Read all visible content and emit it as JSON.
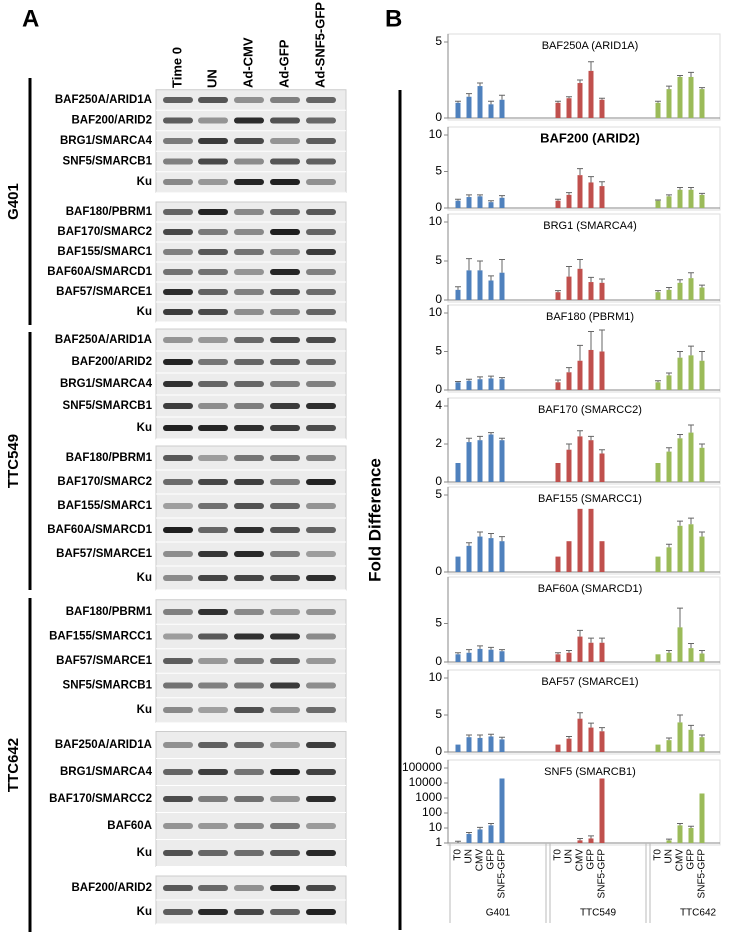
{
  "figure": {
    "panel_a": "A",
    "panel_b": "B",
    "y_label": "Fold Difference",
    "columns": [
      "Time 0",
      "UN",
      "Ad-CMV",
      "Ad-GFP",
      "Ad-SNF5-GFP"
    ],
    "cell_lines": [
      {
        "name": "G401",
        "blocks": [
          [
            "BAF250A/ARID1A",
            "BAF200/ARID2",
            "BRG1/SMARCA4",
            "SNF5/SMARCB1",
            "Ku"
          ],
          [
            "BAF180/PBRM1",
            "BAF170/SMARC2",
            "BAF155/SMARC1",
            "BAF60A/SMARCD1",
            "BAF57/SMARCE1",
            "Ku"
          ]
        ]
      },
      {
        "name": "TTC549",
        "blocks": [
          [
            "BAF250A/ARID1A",
            "BAF200/ARID2",
            "BRG1/SMARCA4",
            "SNF5/SMARCB1",
            "Ku"
          ],
          [
            "BAF180/PBRM1",
            "BAF170/SMARC2",
            "BAF155/SMARC1",
            "BAF60A/SMARCD1",
            "BAF57/SMARCE1",
            "Ku"
          ]
        ]
      },
      {
        "name": "TTC642",
        "blocks": [
          [
            "BAF180/PBRM1",
            "BAF155/SMARCC1",
            "BAF57/SMARCE1",
            "SNF5/SMARCB1",
            "Ku"
          ],
          [
            "BAF250A/ARID1A",
            "BRG1/SMARCA4",
            "BAF170/SMARCC2",
            "BAF60A",
            "Ku"
          ],
          [
            "BAF200/ARID2",
            "Ku"
          ]
        ]
      }
    ]
  },
  "chart_data": [
    {
      "type": "bar",
      "title": "BAF250A (ARID1A)",
      "ylim": [
        0,
        5
      ],
      "yticks": [
        0,
        5
      ],
      "series": [
        {
          "color": "#4f81bd",
          "values": [
            1.0,
            1.4,
            2.1,
            0.9,
            1.2
          ],
          "errors": [
            0.1,
            0.2,
            0.2,
            0.2,
            0.3
          ]
        },
        {
          "color": "#c0504d",
          "values": [
            1.0,
            1.3,
            2.3,
            3.1,
            1.2
          ],
          "errors": [
            0.1,
            0.1,
            0.2,
            0.6,
            0.1
          ]
        },
        {
          "color": "#9bbb59",
          "values": [
            1.0,
            1.9,
            2.7,
            2.7,
            1.9
          ],
          "errors": [
            0.1,
            0.2,
            0.1,
            0.3,
            0.1
          ]
        }
      ]
    },
    {
      "type": "bar",
      "title": "BAF200 (ARID2)",
      "ylim": [
        0,
        10
      ],
      "yticks": [
        0,
        5,
        10
      ],
      "series": [
        {
          "color": "#4f81bd",
          "values": [
            1.0,
            1.5,
            1.6,
            0.8,
            1.4
          ],
          "errors": [
            0.2,
            0.3,
            0.2,
            0.2,
            0.3
          ]
        },
        {
          "color": "#c0504d",
          "values": [
            1.0,
            1.8,
            4.5,
            3.5,
            3.0
          ],
          "errors": [
            0.2,
            0.3,
            0.9,
            0.8,
            0.6
          ]
        },
        {
          "color": "#9bbb59",
          "values": [
            1.0,
            1.6,
            2.5,
            2.5,
            1.8
          ],
          "errors": [
            0.1,
            0.2,
            0.3,
            0.3,
            0.2
          ]
        }
      ]
    },
    {
      "type": "bar",
      "title": "BRG1 (SMARCA4)",
      "ylim": [
        0,
        10
      ],
      "yticks": [
        0,
        5,
        10
      ],
      "series": [
        {
          "color": "#4f81bd",
          "values": [
            1.3,
            3.8,
            3.8,
            2.5,
            3.5
          ],
          "errors": [
            0.4,
            1.5,
            1.2,
            0.6,
            1.7
          ]
        },
        {
          "color": "#c0504d",
          "values": [
            1.0,
            3.0,
            4.0,
            2.3,
            2.2
          ],
          "errors": [
            0.2,
            1.3,
            1.2,
            0.6,
            0.5
          ]
        },
        {
          "color": "#9bbb59",
          "values": [
            1.0,
            1.3,
            2.2,
            2.8,
            1.6
          ],
          "errors": [
            0.2,
            0.3,
            0.4,
            0.7,
            0.3
          ]
        }
      ]
    },
    {
      "type": "bar",
      "title": "BAF180 (PBRM1)",
      "ylim": [
        0,
        10
      ],
      "yticks": [
        0,
        5,
        10
      ],
      "series": [
        {
          "color": "#4f81bd",
          "values": [
            1.0,
            1.2,
            1.4,
            1.5,
            1.4
          ],
          "errors": [
            0.1,
            0.2,
            0.3,
            0.3,
            0.2
          ]
        },
        {
          "color": "#c0504d",
          "values": [
            1.0,
            2.3,
            3.8,
            5.2,
            5.0
          ],
          "errors": [
            0.3,
            0.6,
            2.0,
            2.4,
            2.8
          ]
        },
        {
          "color": "#9bbb59",
          "values": [
            1.0,
            1.9,
            4.2,
            4.5,
            3.8
          ],
          "errors": [
            0.2,
            0.3,
            0.8,
            1.2,
            1.2
          ]
        }
      ]
    },
    {
      "type": "bar",
      "title": "BAF170 (SMARCC2)",
      "ylim": [
        0,
        4
      ],
      "yticks": [
        0,
        2,
        4
      ],
      "series": [
        {
          "color": "#4f81bd",
          "values": [
            1.0,
            2.1,
            2.2,
            2.5,
            2.2
          ],
          "errors": [
            0,
            0.2,
            0.2,
            0.1,
            0.1
          ]
        },
        {
          "color": "#c0504d",
          "values": [
            1.0,
            1.7,
            2.4,
            2.2,
            1.5
          ],
          "errors": [
            0,
            0.3,
            0.3,
            0.2,
            0.2
          ]
        },
        {
          "color": "#9bbb59",
          "values": [
            1.0,
            1.6,
            2.3,
            2.6,
            1.8
          ],
          "errors": [
            0,
            0.2,
            0.2,
            0.4,
            0.2
          ]
        }
      ]
    },
    {
      "type": "bar",
      "title": "BAF155 (SMARCC1)",
      "ylim": [
        0,
        5
      ],
      "yticks": [
        0,
        5
      ],
      "series": [
        {
          "color": "#4f81bd",
          "values": [
            1.0,
            1.7,
            2.3,
            2.2,
            2.0
          ],
          "errors": [
            0,
            0.2,
            0.3,
            0.3,
            0.3
          ]
        },
        {
          "color": "#c0504d",
          "values": [
            1.0,
            2.0,
            4.1,
            4.1,
            2.0
          ],
          "errors": [
            0,
            0,
            0,
            0,
            0
          ]
        },
        {
          "color": "#9bbb59",
          "values": [
            1.0,
            1.6,
            3.0,
            3.1,
            2.3
          ],
          "errors": [
            0,
            0.2,
            0.3,
            0.4,
            0.3
          ]
        }
      ]
    },
    {
      "type": "bar",
      "title": "BAF60A (SMARCD1)",
      "ylim": [
        0,
        10
      ],
      "yticks": [
        0,
        5
      ],
      "series": [
        {
          "color": "#4f81bd",
          "values": [
            1.0,
            1.2,
            1.7,
            1.6,
            1.4
          ],
          "errors": [
            0.2,
            0.4,
            0.4,
            0.3,
            0.2
          ]
        },
        {
          "color": "#c0504d",
          "values": [
            1.0,
            1.2,
            3.3,
            2.5,
            2.5
          ],
          "errors": [
            0.2,
            0.3,
            0.8,
            0.6,
            0.6
          ]
        },
        {
          "color": "#9bbb59",
          "values": [
            1.0,
            1.2,
            4.5,
            1.8,
            1.1
          ],
          "errors": [
            0,
            0.3,
            2.5,
            0.6,
            0.4
          ]
        }
      ]
    },
    {
      "type": "bar",
      "title": "BAF57 (SMARCE1)",
      "ylim": [
        0,
        10
      ],
      "yticks": [
        0,
        5,
        10
      ],
      "series": [
        {
          "color": "#4f81bd",
          "values": [
            1.0,
            2.0,
            1.9,
            2.1,
            1.7
          ],
          "errors": [
            0,
            0.3,
            0.4,
            0.3,
            0.3
          ]
        },
        {
          "color": "#c0504d",
          "values": [
            1.0,
            1.8,
            4.5,
            3.3,
            2.8
          ],
          "errors": [
            0,
            0.3,
            0.8,
            0.6,
            0.5
          ]
        },
        {
          "color": "#9bbb59",
          "values": [
            1.0,
            1.6,
            4.0,
            3.0,
            2.0
          ],
          "errors": [
            0,
            0.3,
            1.0,
            0.6,
            0.3
          ]
        }
      ]
    },
    {
      "type": "bar",
      "title": "SNF5 (SMARCB1)",
      "log": true,
      "ylim": [
        1,
        100000
      ],
      "yticks": [
        1,
        10,
        100,
        1000,
        10000,
        100000
      ],
      "categories": [
        "T0",
        "UN",
        "CMV",
        "GFP",
        "SNF5-GFP"
      ],
      "series": [
        {
          "name": "G401",
          "color": "#4f81bd",
          "values": [
            1,
            4,
            8,
            15,
            20000
          ],
          "errors": [
            0.3,
            1,
            3,
            5,
            0
          ]
        },
        {
          "name": "TTC549",
          "color": "#c0504d",
          "values": [
            1,
            1,
            1.5,
            2,
            20000
          ],
          "errors": [
            0,
            0,
            0.5,
            1,
            0
          ]
        },
        {
          "name": "TTC642",
          "color": "#9bbb59",
          "values": [
            1,
            1.5,
            15,
            10,
            2000
          ],
          "errors": [
            0,
            0.3,
            5,
            3,
            0
          ]
        }
      ]
    }
  ]
}
